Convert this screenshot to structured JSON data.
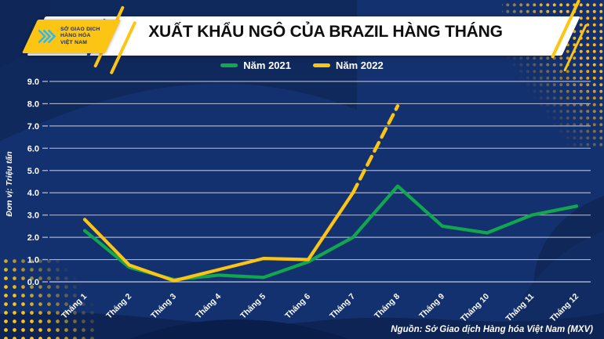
{
  "header": {
    "title": "XUẤT KHẨU NGÔ CỦA BRAZIL HÀNG THÁNG",
    "logo": {
      "line1": "SỞ GIAO DỊCH",
      "line2": "HÀNG HÓA",
      "line3": "VIỆT NAM"
    }
  },
  "chart_data": {
    "type": "line",
    "title": "XUẤT KHẨU NGÔ CỦA BRAZIL HÀNG THÁNG",
    "ylabel": "Đơn vị: Triệu tấn",
    "ylim": [
      0,
      9
    ],
    "ytick_step": 1,
    "ytick_decimals": 1,
    "grid": true,
    "legend_position": "top-center",
    "categories": [
      "Tháng 1",
      "Tháng 2",
      "Tháng 3",
      "Tháng 4",
      "Tháng 5",
      "Tháng 6",
      "Tháng 7",
      "Tháng 8",
      "Tháng 9",
      "Tháng 10",
      "Tháng 11",
      "Tháng 12"
    ],
    "series": [
      {
        "name": "Năm 2021",
        "color": "#10a74e",
        "line_style": "solid",
        "values": [
          2.3,
          0.65,
          0.1,
          0.3,
          0.2,
          0.9,
          2.0,
          4.3,
          2.5,
          2.2,
          3.0,
          3.4
        ]
      },
      {
        "name": "Năm 2022",
        "color": "#fdc513",
        "line_style": "solid; dashed projection after Tháng 7",
        "dashed_from_index": 6,
        "values": [
          2.8,
          0.75,
          0.05,
          0.55,
          1.05,
          1.0,
          4.0,
          7.9,
          null,
          null,
          null,
          null
        ]
      }
    ]
  },
  "footer": {
    "source": "Nguồn: Sở Giao dịch Hàng hóa Việt Nam (MXV)"
  },
  "colors": {
    "background": "#14316f",
    "background_dark": "#0f2859",
    "background_darker": "#0c2153",
    "grid": "#a8afc8",
    "axis_text": "#ffffff",
    "banner": "#ffffff",
    "title_text": "#0f0f0f",
    "green": "#10a74e",
    "yellow": "#fdc513",
    "logo_cyan": "#35b4e5",
    "logo_navy": "#1c2e66"
  }
}
